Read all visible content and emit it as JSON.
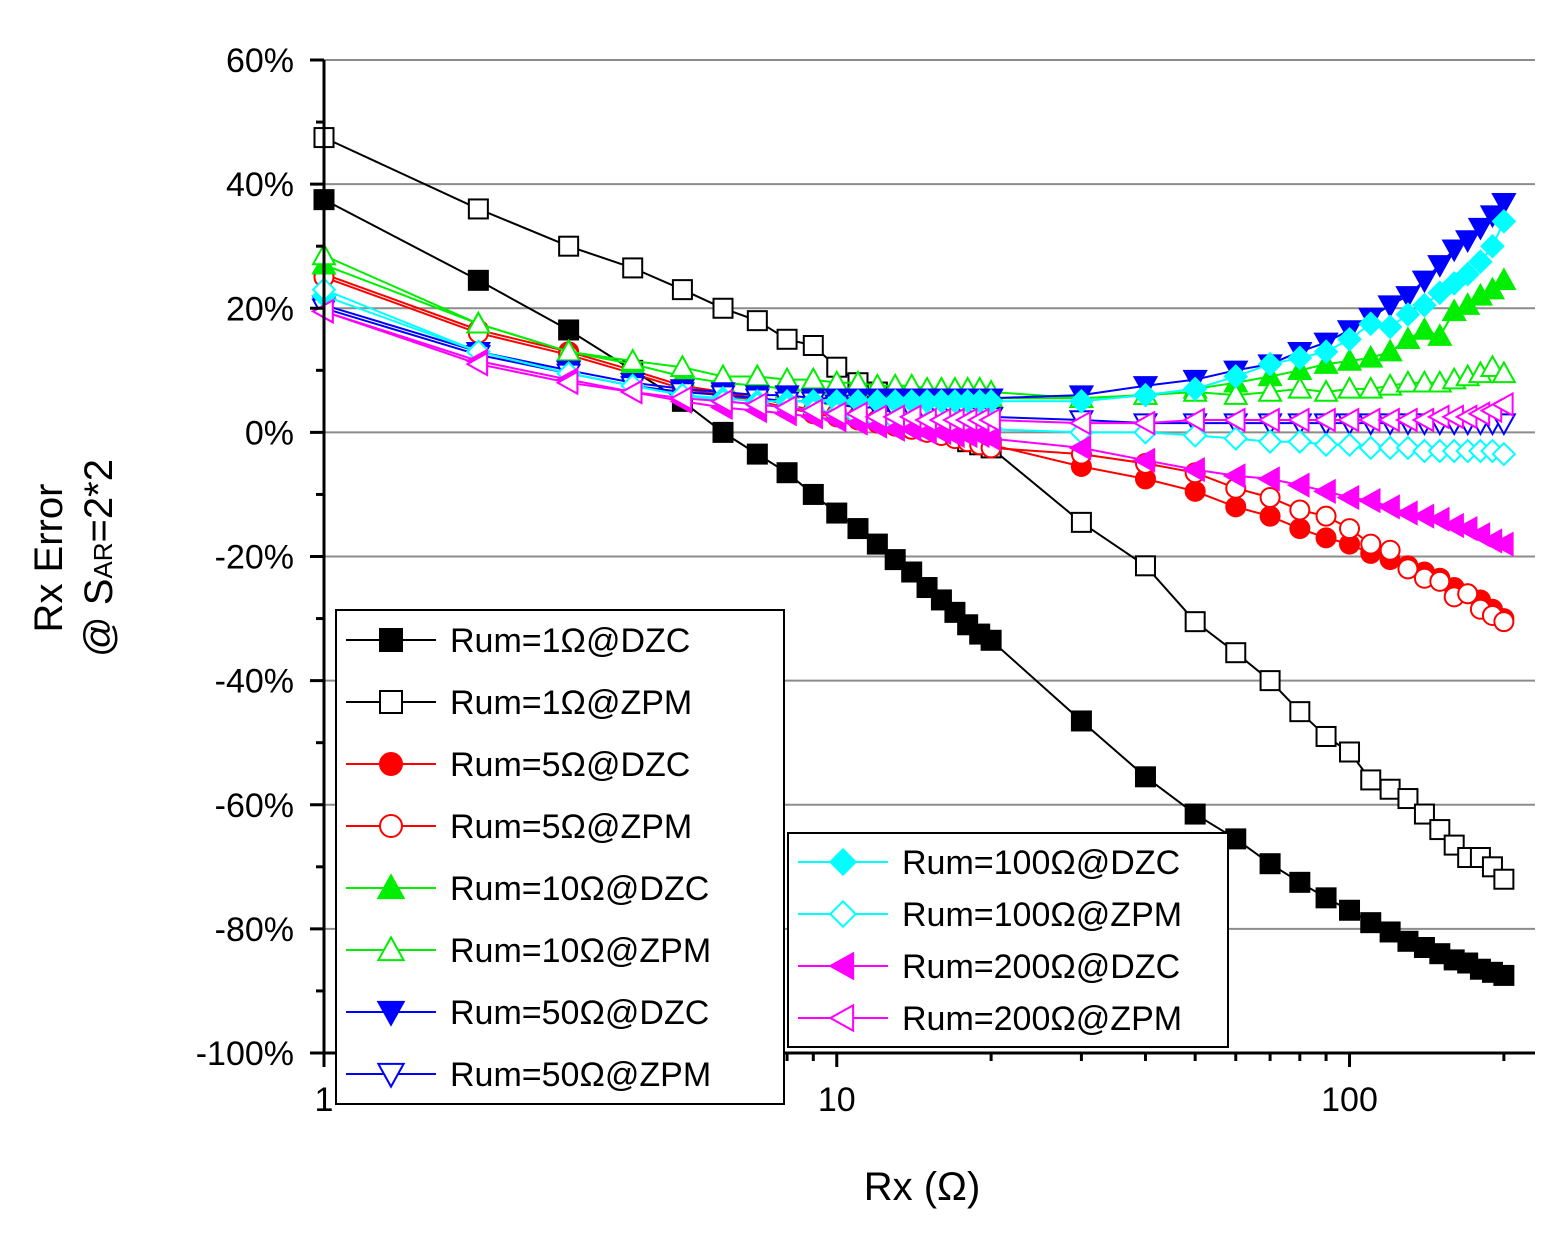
{
  "chart_data": {
    "type": "line",
    "title": "",
    "xlabel": "Rx (Ω)",
    "ylabel_line1": "Rx Error",
    "ylabel_line2_prefix": "@ S",
    "ylabel_line2_sub": "AR",
    "ylabel_line2_suffix": "=2*2",
    "xscale": "log",
    "xlim": [
      1,
      230
    ],
    "ylim": [
      -100,
      60
    ],
    "x_ticks": [
      {
        "value": 1,
        "label": "1"
      },
      {
        "value": 10,
        "label": "10"
      },
      {
        "value": 100,
        "label": "100"
      }
    ],
    "y_ticks": [
      {
        "value": 60,
        "label": "60%"
      },
      {
        "value": 40,
        "label": "40%"
      },
      {
        "value": 20,
        "label": "20%"
      },
      {
        "value": 0,
        "label": "0%"
      },
      {
        "value": -20,
        "label": "-20%"
      },
      {
        "value": -40,
        "label": "-40%"
      },
      {
        "value": -60,
        "label": "-60%"
      },
      {
        "value": -80,
        "label": "-80%"
      },
      {
        "value": -100,
        "label": "-100%"
      }
    ],
    "grid": "horizontal",
    "x": [
      1,
      2,
      3,
      4,
      5,
      6,
      7,
      8,
      9,
      10,
      11,
      12,
      13,
      14,
      15,
      16,
      17,
      18,
      19,
      20,
      30,
      40,
      50,
      60,
      70,
      80,
      90,
      100,
      110,
      120,
      130,
      140,
      150,
      160,
      170,
      180,
      190,
      200
    ],
    "series": [
      {
        "name": "Rum=1Ω@DZC",
        "color": "#000000",
        "marker": "square",
        "filled": true,
        "values": [
          37.5,
          24.5,
          16.5,
          10,
          5,
          0,
          -3.5,
          -6.5,
          -10,
          -13,
          -15.5,
          -18,
          -20.5,
          -22.5,
          -25,
          -27,
          -29,
          -31,
          -32.5,
          -33.5,
          -46.5,
          -55.5,
          -61.5,
          -65.5,
          -69.5,
          -72.5,
          -75,
          -77,
          -79,
          -80.5,
          -82,
          -83,
          -84,
          -85,
          -85.5,
          -86.5,
          -87,
          -87.5
        ]
      },
      {
        "name": "Rum=1Ω@ZPM",
        "color": "#000000",
        "marker": "square",
        "filled": false,
        "values": [
          47.5,
          36,
          30,
          26.5,
          23,
          20,
          18,
          15,
          14,
          10.5,
          8,
          6.5,
          5,
          4,
          3,
          2.5,
          2,
          -1.5,
          -2,
          -2.5,
          -14.5,
          -21.5,
          -30.5,
          -35.5,
          -40,
          -45,
          -49,
          -51.5,
          -56,
          -57.5,
          -59,
          -61.5,
          -64,
          -66.5,
          -68.5,
          -68.5,
          -70,
          -72
        ]
      },
      {
        "name": "Rum=5Ω@DZC",
        "color": "#ff0000",
        "marker": "circle",
        "filled": true,
        "values": [
          25.5,
          16.5,
          13,
          10,
          7.5,
          6.5,
          5.5,
          4.5,
          3.5,
          3,
          2.5,
          2,
          1.5,
          1,
          0.5,
          0,
          -0.5,
          -1,
          -1.5,
          -2,
          -5.5,
          -7.5,
          -9.5,
          -12,
          -13.5,
          -15.5,
          -17,
          -18,
          -19.5,
          -20.5,
          -21.5,
          -22.5,
          -23.5,
          -25,
          -26,
          -27,
          -28.5,
          -30
        ]
      },
      {
        "name": "Rum=5Ω@ZPM",
        "color": "#ff0000",
        "marker": "circle",
        "filled": false,
        "values": [
          25,
          16,
          12.5,
          9.5,
          7,
          6,
          5,
          4,
          3,
          2.5,
          2,
          1.5,
          1,
          0.5,
          0,
          -0.5,
          -1,
          -1.5,
          -2,
          -2.5,
          -3.5,
          -5,
          -6.5,
          -9,
          -10.5,
          -12.5,
          -13.5,
          -15.5,
          -18,
          -19,
          -22,
          -23.5,
          -24,
          -26.5,
          -26,
          -28.5,
          -29.5,
          -30.5
        ]
      },
      {
        "name": "Rum=10Ω@DZC",
        "color": "#00ee00",
        "marker": "triangle-up",
        "filled": true,
        "values": [
          27,
          17.5,
          13,
          11,
          9,
          8,
          7.5,
          7,
          6.5,
          6,
          6,
          6,
          6,
          5.5,
          5.5,
          5.5,
          5.5,
          5.5,
          5.5,
          5.5,
          5.5,
          6,
          7,
          8,
          9,
          10,
          11,
          11.5,
          12,
          13,
          15,
          16.5,
          15.5,
          19.5,
          20.5,
          22,
          23,
          24.5
        ]
      },
      {
        "name": "Rum=10Ω@ZPM",
        "color": "#00ee00",
        "marker": "triangle-up",
        "filled": false,
        "values": [
          28.5,
          17.5,
          13,
          11.5,
          10.5,
          9,
          9,
          8.5,
          8.5,
          8,
          8,
          7.5,
          7.5,
          7.5,
          7,
          7,
          7,
          7,
          7,
          6.5,
          5.5,
          6,
          6.5,
          6,
          6.5,
          7,
          6.5,
          7,
          7,
          7.5,
          8,
          8,
          8,
          8.5,
          9,
          9.5,
          10.5,
          9.5
        ]
      },
      {
        "name": "Rum=50Ω@DZC",
        "color": "#0000ff",
        "marker": "triangle-down",
        "filled": true,
        "values": [
          20.5,
          13,
          10,
          8,
          7,
          6.5,
          6,
          6,
          5.5,
          5.5,
          5.5,
          5.5,
          5.5,
          5.5,
          5.5,
          5.5,
          5.5,
          5.5,
          5.5,
          5.5,
          6,
          7.5,
          8.5,
          10,
          11,
          13,
          14.5,
          16.5,
          18.5,
          20.5,
          22,
          24.5,
          27,
          29.5,
          31,
          33,
          35,
          37
        ]
      },
      {
        "name": "Rum=50Ω@ZPM",
        "color": "#0000ff",
        "marker": "triangle-down",
        "filled": false,
        "values": [
          20,
          12.5,
          9.5,
          7.5,
          6.5,
          6,
          5.5,
          5,
          5,
          4.5,
          4,
          4,
          3.5,
          3.5,
          3,
          3,
          3,
          3,
          2.5,
          2.5,
          2,
          1.5,
          1.5,
          1.5,
          1.5,
          1.5,
          1.5,
          1.5,
          1.5,
          1.5,
          1.5,
          1.5,
          1.5,
          1.5,
          1.5,
          1.5,
          1.5,
          1.5
        ]
      },
      {
        "name": "Rum=100Ω@DZC",
        "color": "#00ffff",
        "marker": "diamond",
        "filled": true,
        "values": [
          22,
          13,
          9.5,
          7.5,
          6,
          5.5,
          5,
          5,
          5,
          5,
          5,
          5,
          5,
          5,
          5,
          5,
          5,
          5,
          5,
          5,
          5,
          6,
          7,
          9,
          11,
          12,
          13,
          15,
          17.5,
          17,
          19,
          20.5,
          22.5,
          24,
          25.5,
          27.5,
          30,
          34
        ]
      },
      {
        "name": "Rum=100Ω@ZPM",
        "color": "#00ffff",
        "marker": "diamond",
        "filled": false,
        "values": [
          23,
          13,
          9.5,
          7.5,
          6,
          5,
          4.5,
          4,
          3.5,
          3,
          2.5,
          2,
          2,
          1.5,
          1.5,
          1,
          1,
          0.5,
          0.5,
          0.5,
          0,
          0,
          -0.5,
          -1,
          -1.5,
          -1.5,
          -2,
          -2,
          -2.5,
          -2.5,
          -2.5,
          -3,
          -3,
          -3,
          -3,
          -3,
          -3,
          -3.5
        ]
      },
      {
        "name": "Rum=200Ω@DZC",
        "color": "#ff00ff",
        "marker": "triangle-left",
        "filled": true,
        "values": [
          19.5,
          11.5,
          8.5,
          6.5,
          5,
          4,
          3.5,
          3,
          2.5,
          2,
          1.5,
          1,
          0.5,
          0.5,
          0,
          0,
          -0.5,
          -0.5,
          -0.5,
          -1,
          -2.5,
          -4.5,
          -6,
          -7,
          -7.5,
          -8.5,
          -9.5,
          -10.5,
          -11,
          -12,
          -13,
          -13.5,
          -14,
          -15,
          -15.5,
          -16.5,
          -17.5,
          -18
        ]
      },
      {
        "name": "Rum=200Ω@ZPM",
        "color": "#ff00ff",
        "marker": "triangle-left",
        "filled": false,
        "values": [
          19.5,
          11,
          8,
          6.5,
          5.5,
          5,
          4.5,
          4,
          3.5,
          3,
          3,
          2.5,
          2.5,
          2.5,
          2,
          2,
          2,
          2,
          2,
          2,
          1.5,
          1.5,
          2,
          2,
          2,
          2,
          2,
          2,
          2,
          2,
          2,
          2,
          2.5,
          2.5,
          2.5,
          3,
          3.5,
          4.5
        ]
      }
    ],
    "legends": [
      {
        "placement": "bottom-left",
        "entries": [
          0,
          1,
          2,
          3,
          4,
          5,
          6,
          7
        ]
      },
      {
        "placement": "bottom-center",
        "entries": [
          8,
          9,
          10,
          11
        ]
      }
    ]
  }
}
